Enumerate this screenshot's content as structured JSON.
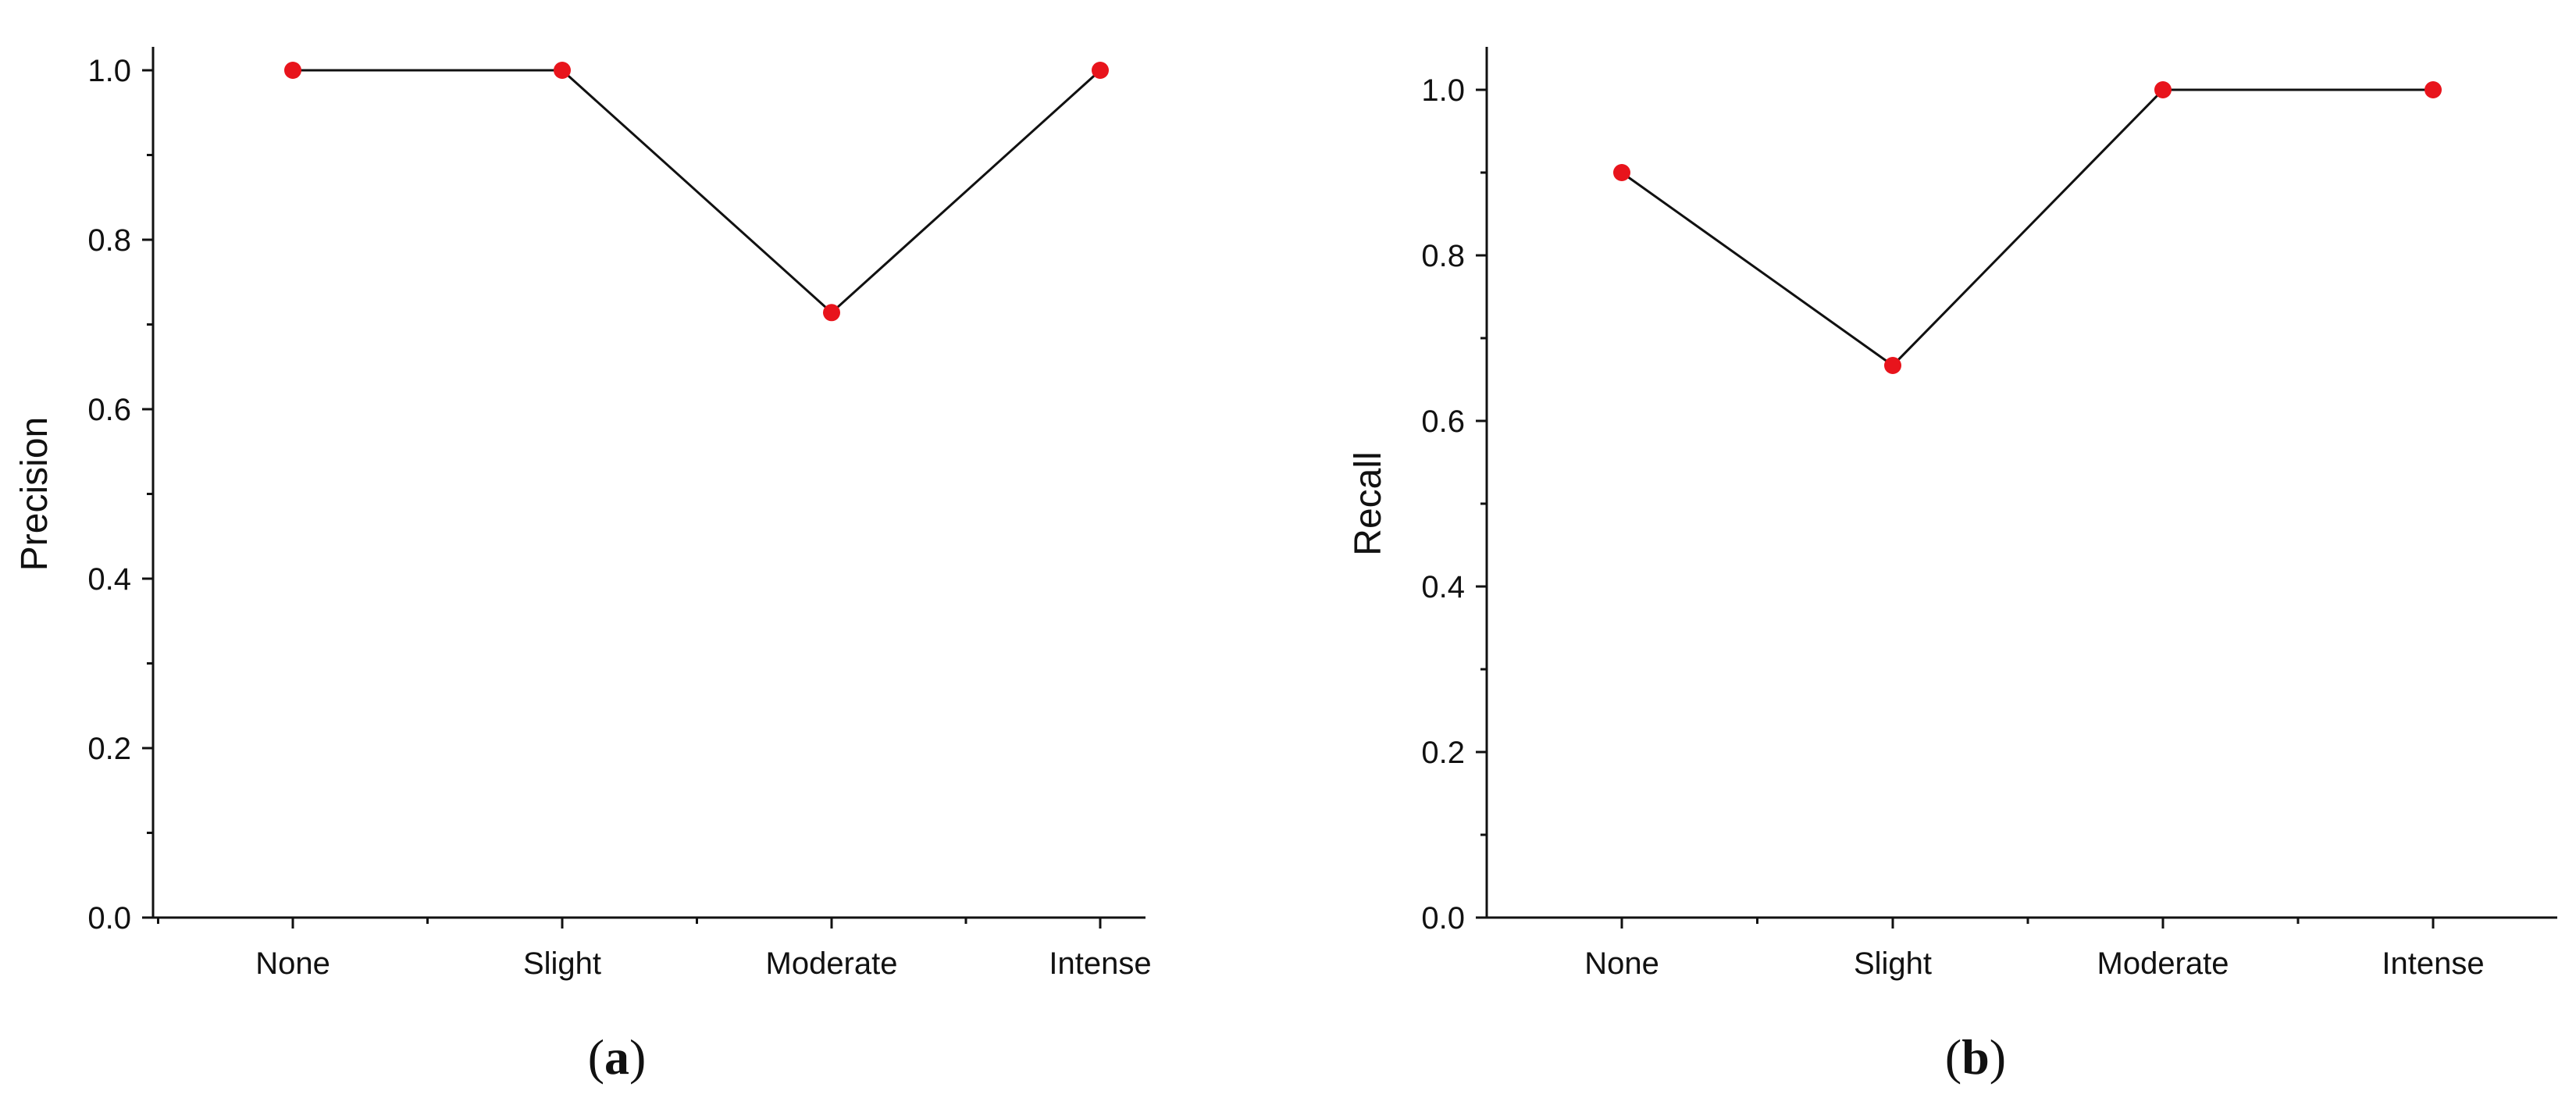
{
  "chart_data": [
    {
      "type": "line",
      "panel_label": "a",
      "categories": [
        "None",
        "Slight",
        "Moderate",
        "Intense"
      ],
      "values": [
        1.0,
        1.0,
        0.714,
        1.0
      ],
      "ylabel": "Precision",
      "xlabel": "",
      "ylim": [
        0.0,
        1.02
      ],
      "yticks": [
        "0.0",
        "0.2",
        "0.4",
        "0.6",
        "0.8",
        "1.0"
      ],
      "grid": false,
      "marker_color": "#e8141c",
      "line_color": "#111111"
    },
    {
      "type": "line",
      "panel_label": "b",
      "categories": [
        "None",
        "Slight",
        "Moderate",
        "Intense"
      ],
      "values": [
        0.9,
        0.667,
        1.0,
        1.0
      ],
      "ylabel": "Recall",
      "xlabel": "",
      "ylim": [
        0.0,
        1.05
      ],
      "yticks": [
        "0.0",
        "0.2",
        "0.4",
        "0.6",
        "0.8",
        "1.0"
      ],
      "grid": false,
      "marker_color": "#e8141c",
      "line_color": "#111111"
    }
  ]
}
